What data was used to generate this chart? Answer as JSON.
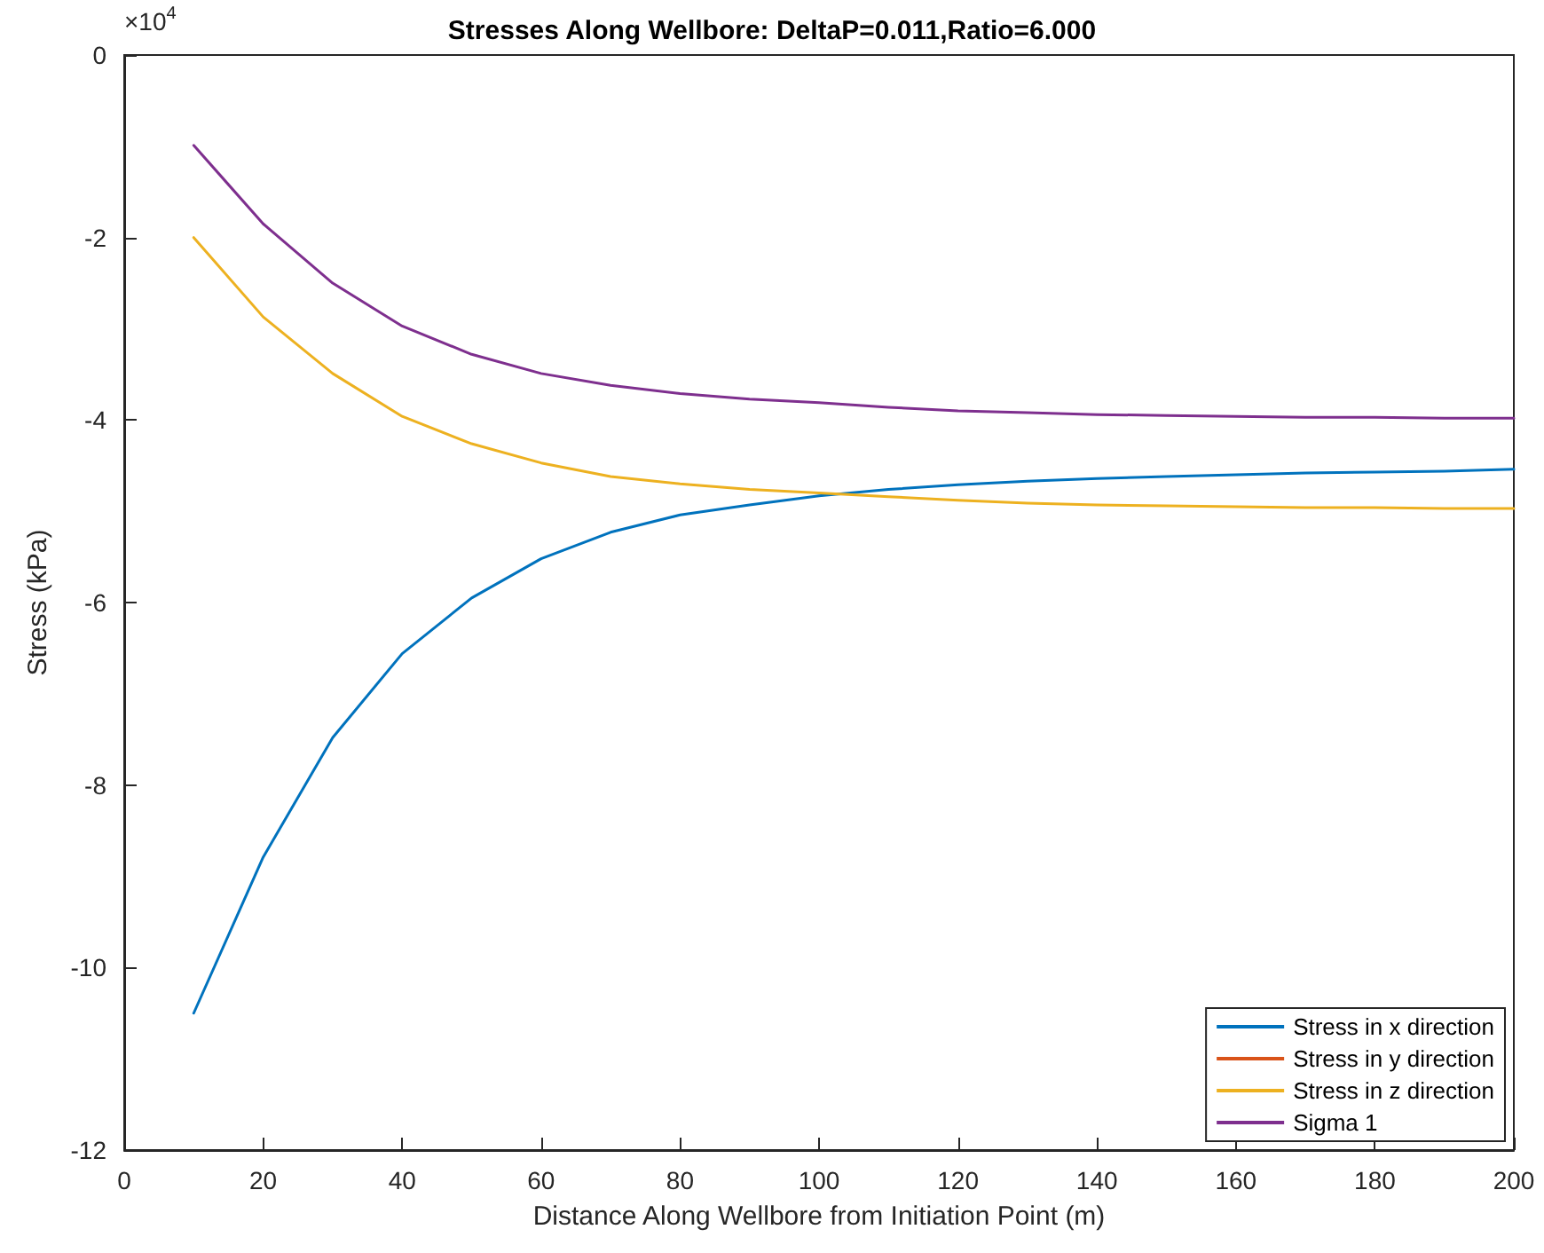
{
  "chart_data": {
    "type": "line",
    "title": "Stresses Along Wellbore: DeltaP=0.011,Ratio=6.000",
    "xlabel": "Distance Along Wellbore from Initiation Point (m)",
    "ylabel": "Stress (kPa)",
    "annotations": [
      "×10$^{4}$"
    ],
    "x": [
      10,
      20,
      30,
      40,
      50,
      60,
      70,
      80,
      90,
      100,
      110,
      120,
      130,
      140,
      150,
      160,
      170,
      180,
      190,
      200
    ],
    "series": [
      {
        "name": "Stress in x direction",
        "color": "#0072bd",
        "values": [
          -10.5,
          -8.79,
          -7.48,
          -6.56,
          -5.95,
          -5.52,
          -5.23,
          -5.04,
          -4.93,
          -4.83,
          -4.76,
          -4.71,
          -4.67,
          -4.64,
          -4.62,
          -4.6,
          -4.58,
          -4.57,
          -4.56,
          -4.54
        ]
      },
      {
        "name": "Stress in y direction",
        "color": "#d95319",
        "values": [
          null,
          null,
          null,
          null,
          null,
          null,
          null,
          null,
          null,
          null,
          null,
          null,
          null,
          null,
          null,
          null,
          null,
          null,
          null,
          null
        ]
      },
      {
        "name": "Stress in z direction",
        "color": "#edb120",
        "values": [
          -2.0,
          -2.87,
          -3.49,
          -3.96,
          -4.26,
          -4.47,
          -4.62,
          -4.7,
          -4.76,
          -4.8,
          -4.84,
          -4.88,
          -4.91,
          -4.93,
          -4.94,
          -4.95,
          -4.96,
          -4.96,
          -4.97,
          -4.97
        ]
      },
      {
        "name": "Sigma 1",
        "color": "#7e2f8e",
        "values": [
          -0.99,
          -1.85,
          -2.5,
          -2.97,
          -3.28,
          -3.49,
          -3.62,
          -3.71,
          -3.77,
          -3.81,
          -3.86,
          -3.9,
          -3.92,
          -3.94,
          -3.95,
          -3.96,
          -3.97,
          -3.97,
          -3.98,
          -3.98
        ]
      }
    ],
    "xlim": [
      0,
      200
    ],
    "xticks": [
      0,
      20,
      40,
      60,
      80,
      100,
      120,
      140,
      160,
      180,
      200
    ],
    "ylim": [
      -12,
      0
    ],
    "yticks": [
      -12,
      -10,
      -8,
      -6,
      -4,
      -2,
      0
    ],
    "legend": "bottom right",
    "grid": false,
    "marker": "none",
    "line_style": "solid"
  }
}
